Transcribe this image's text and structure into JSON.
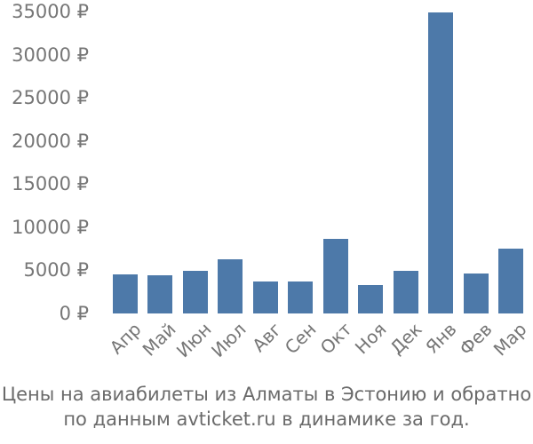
{
  "chart_data": {
    "type": "bar",
    "title": "",
    "xlabel": "",
    "ylabel": "",
    "categories": [
      "Апр",
      "Май",
      "Июн",
      "Июл",
      "Авг",
      "Сен",
      "Окт",
      "Ноя",
      "Дек",
      "Янв",
      "Фев",
      "Мар"
    ],
    "values": [
      4500,
      4400,
      5000,
      6300,
      3700,
      3700,
      8700,
      3300,
      5000,
      35000,
      4600,
      7500
    ],
    "ylim": [
      0,
      35000
    ],
    "ytick_step": 5000,
    "yticks": [
      "0 ₽",
      "5000 ₽",
      "10000 ₽",
      "15000 ₽",
      "20000 ₽",
      "25000 ₽",
      "30000 ₽",
      "35000 ₽"
    ],
    "grid": false,
    "legend": "none",
    "bar_color": "#4d79a9",
    "tick_label_color": "#767676",
    "x_tick_rotation_deg": 45
  },
  "caption": {
    "line1": "Цены на авиабилеты из Алматы в Эстонию и обратно",
    "line2": "по данным avticket.ru в динамике за год."
  },
  "colors": {
    "bar": "#4d79a9",
    "axis_label": "#767676",
    "caption": "#6a6a6a",
    "background": "#ffffff"
  }
}
